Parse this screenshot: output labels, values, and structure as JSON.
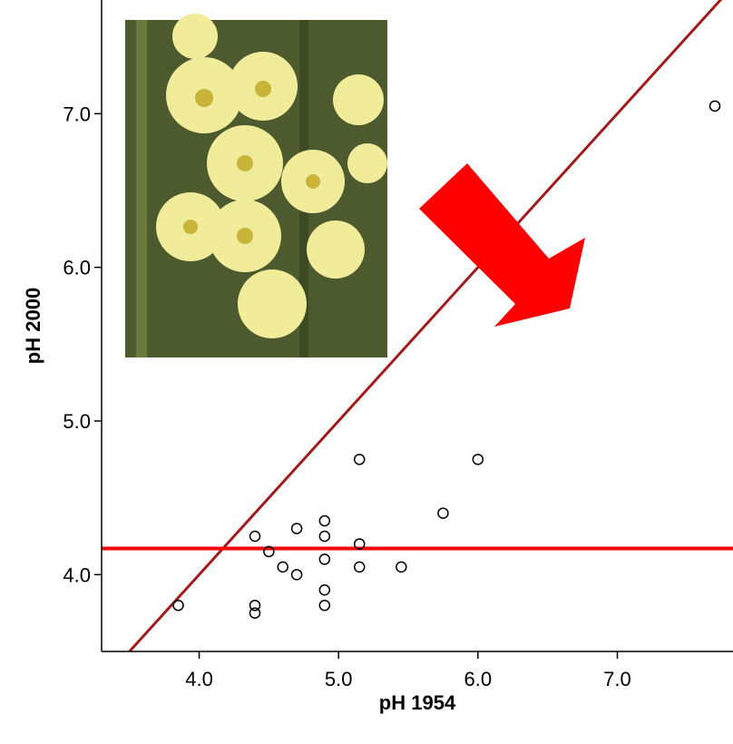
{
  "chart_data": {
    "type": "scatter",
    "x_label": "pH 1954",
    "y_label": "pH 2000",
    "x": [
      3.85,
      4.4,
      4.4,
      4.4,
      4.5,
      4.6,
      4.7,
      4.7,
      4.9,
      4.9,
      4.9,
      4.9,
      4.9,
      5.15,
      5.15,
      5.15,
      5.45,
      5.75,
      6.0,
      7.7
    ],
    "values": [
      3.8,
      4.25,
      3.8,
      3.75,
      4.15,
      4.05,
      4.3,
      4.0,
      4.35,
      4.25,
      4.1,
      3.9,
      3.8,
      4.75,
      4.2,
      4.05,
      4.05,
      4.4,
      4.75,
      7.05
    ],
    "color": "#000000",
    "xlim": [
      3.3,
      7.83
    ],
    "ylim": [
      3.5,
      7.74
    ],
    "xticks": [
      {
        "value": 4,
        "label": "4.0"
      },
      {
        "value": 5,
        "label": "5.0"
      },
      {
        "value": 6,
        "label": "6.0"
      },
      {
        "value": 7,
        "label": "7.0"
      }
    ],
    "yticks": [
      {
        "value": 4,
        "label": "4.0"
      },
      {
        "value": 5,
        "label": "5.0"
      },
      {
        "value": 6,
        "label": "6.0"
      },
      {
        "value": 7,
        "label": "7.0"
      }
    ],
    "identity_line": true,
    "identity_color": "#a01c1c",
    "hline": 4.17,
    "hline_color": "#ff0000"
  }
}
